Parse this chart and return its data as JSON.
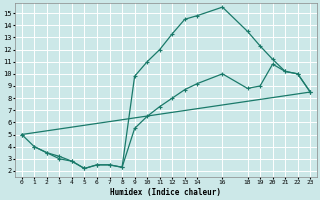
{
  "xlabel": "Humidex (Indice chaleur)",
  "bg_color": "#cce8e8",
  "line_color": "#1a7a6a",
  "grid_color": "#ffffff",
  "xlim": [
    -0.5,
    23.5
  ],
  "ylim": [
    1.5,
    15.8
  ],
  "xticks": [
    0,
    1,
    2,
    3,
    4,
    5,
    6,
    7,
    8,
    9,
    10,
    11,
    12,
    13,
    14,
    16,
    18,
    19,
    20,
    21,
    22,
    23
  ],
  "yticks": [
    2,
    3,
    4,
    5,
    6,
    7,
    8,
    9,
    10,
    11,
    12,
    13,
    14,
    15
  ],
  "line1_x": [
    0,
    1,
    2,
    3,
    4,
    5,
    6,
    7,
    8,
    9,
    10,
    11,
    12,
    13,
    14,
    16,
    18,
    19,
    20,
    21,
    22,
    23
  ],
  "line1_y": [
    5.0,
    4.0,
    3.5,
    3.2,
    2.8,
    2.2,
    2.5,
    2.5,
    2.3,
    9.8,
    11.0,
    12.0,
    13.3,
    14.5,
    14.8,
    15.5,
    13.5,
    12.3,
    11.2,
    10.2,
    10.0,
    8.5
  ],
  "line2_x": [
    0,
    23
  ],
  "line2_y": [
    5.0,
    8.5
  ],
  "line3_x": [
    1,
    2,
    3,
    4,
    5,
    6,
    7,
    8,
    9,
    10,
    11,
    12,
    13,
    14,
    16,
    18,
    19,
    20,
    21,
    22,
    23
  ],
  "line3_y": [
    4.0,
    3.5,
    3.0,
    2.8,
    2.2,
    2.5,
    2.5,
    2.3,
    5.5,
    6.5,
    7.3,
    8.0,
    8.7,
    9.2,
    10.0,
    8.8,
    9.0,
    10.8,
    10.2,
    10.0,
    8.5
  ]
}
